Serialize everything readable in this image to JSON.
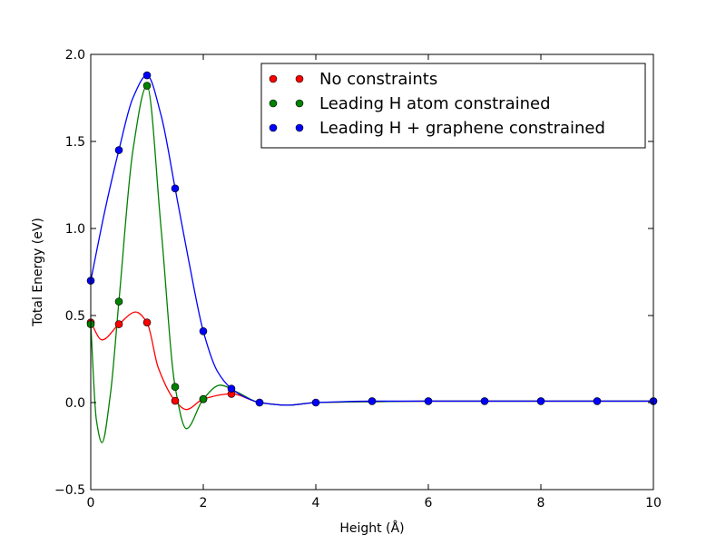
{
  "chart_data": {
    "type": "line",
    "xlabel": "Height (Å)",
    "ylabel": "Total Energy (eV)",
    "xlim": [
      0,
      10
    ],
    "ylim": [
      -0.5,
      2.0
    ],
    "xticks": [
      0,
      2,
      4,
      6,
      8,
      10
    ],
    "yticks": [
      -0.5,
      0.0,
      0.5,
      1.0,
      1.5,
      2.0
    ],
    "xtick_labels": [
      "0",
      "2",
      "4",
      "6",
      "8",
      "10"
    ],
    "ytick_labels": [
      "−0.5",
      "0.0",
      "0.5",
      "1.0",
      "1.5",
      "2.0"
    ],
    "grid": false,
    "legend_position": "top-right",
    "series": [
      {
        "name": "No constraints",
        "color": "#ff0000",
        "markers": {
          "x": [
            0,
            0.5,
            1.0,
            1.5,
            2.0,
            2.5,
            3.0
          ],
          "y": [
            0.46,
            0.45,
            0.46,
            0.01,
            0.02,
            0.05,
            0.0
          ]
        },
        "curve": {
          "x": [
            0,
            0.2,
            0.5,
            0.8,
            1.0,
            1.2,
            1.5,
            1.7,
            2.0,
            2.5,
            3.0,
            3.5,
            4.0,
            5.0,
            6.0,
            7.0,
            8.0,
            9.0,
            10.0
          ],
          "y": [
            0.46,
            0.36,
            0.45,
            0.52,
            0.46,
            0.2,
            0.01,
            -0.04,
            0.02,
            0.05,
            0.0,
            -0.015,
            0.0,
            0.005,
            0.008,
            0.008,
            0.008,
            0.008,
            0.008
          ]
        }
      },
      {
        "name": "Leading H atom constrained",
        "color": "#008000",
        "markers": {
          "x": [
            0,
            0.5,
            1.0,
            1.5,
            2.0
          ],
          "y": [
            0.45,
            0.58,
            1.82,
            0.09,
            0.02
          ]
        },
        "curve": {
          "x": [
            0,
            0.1,
            0.2,
            0.35,
            0.5,
            0.75,
            1.0,
            1.25,
            1.5,
            1.7,
            2.0,
            2.3,
            2.6,
            3.0,
            3.5,
            4.0,
            5.0,
            6.0,
            7.0,
            8.0,
            9.0,
            10.0
          ],
          "y": [
            0.45,
            -0.1,
            -0.23,
            0.05,
            0.58,
            1.45,
            1.82,
            1.0,
            0.09,
            -0.15,
            0.02,
            0.1,
            0.06,
            0.0,
            -0.015,
            0.0,
            0.005,
            0.008,
            0.008,
            0.008,
            0.008,
            0.008
          ]
        }
      },
      {
        "name": "Leading H + graphene constrained",
        "color": "#0000ff",
        "markers": {
          "x": [
            0,
            0.5,
            1.0,
            1.5,
            2.0,
            2.5,
            3.0,
            4.0,
            5.0,
            6.0,
            7.0,
            8.0,
            9.0,
            10.0
          ],
          "y": [
            0.7,
            1.45,
            1.88,
            1.23,
            0.41,
            0.08,
            0.0,
            0.0,
            0.008,
            0.008,
            0.008,
            0.008,
            0.008,
            0.008
          ]
        },
        "curve": {
          "x": [
            0,
            0.25,
            0.5,
            0.75,
            1.0,
            1.25,
            1.5,
            1.75,
            2.0,
            2.25,
            2.5,
            2.75,
            3.0,
            3.5,
            4.0,
            5.0,
            6.0,
            7.0,
            8.0,
            9.0,
            10.0
          ],
          "y": [
            0.7,
            1.1,
            1.45,
            1.75,
            1.88,
            1.65,
            1.23,
            0.8,
            0.41,
            0.18,
            0.08,
            0.03,
            0.0,
            -0.015,
            0.0,
            0.008,
            0.008,
            0.008,
            0.008,
            0.008,
            0.008
          ]
        }
      }
    ]
  }
}
